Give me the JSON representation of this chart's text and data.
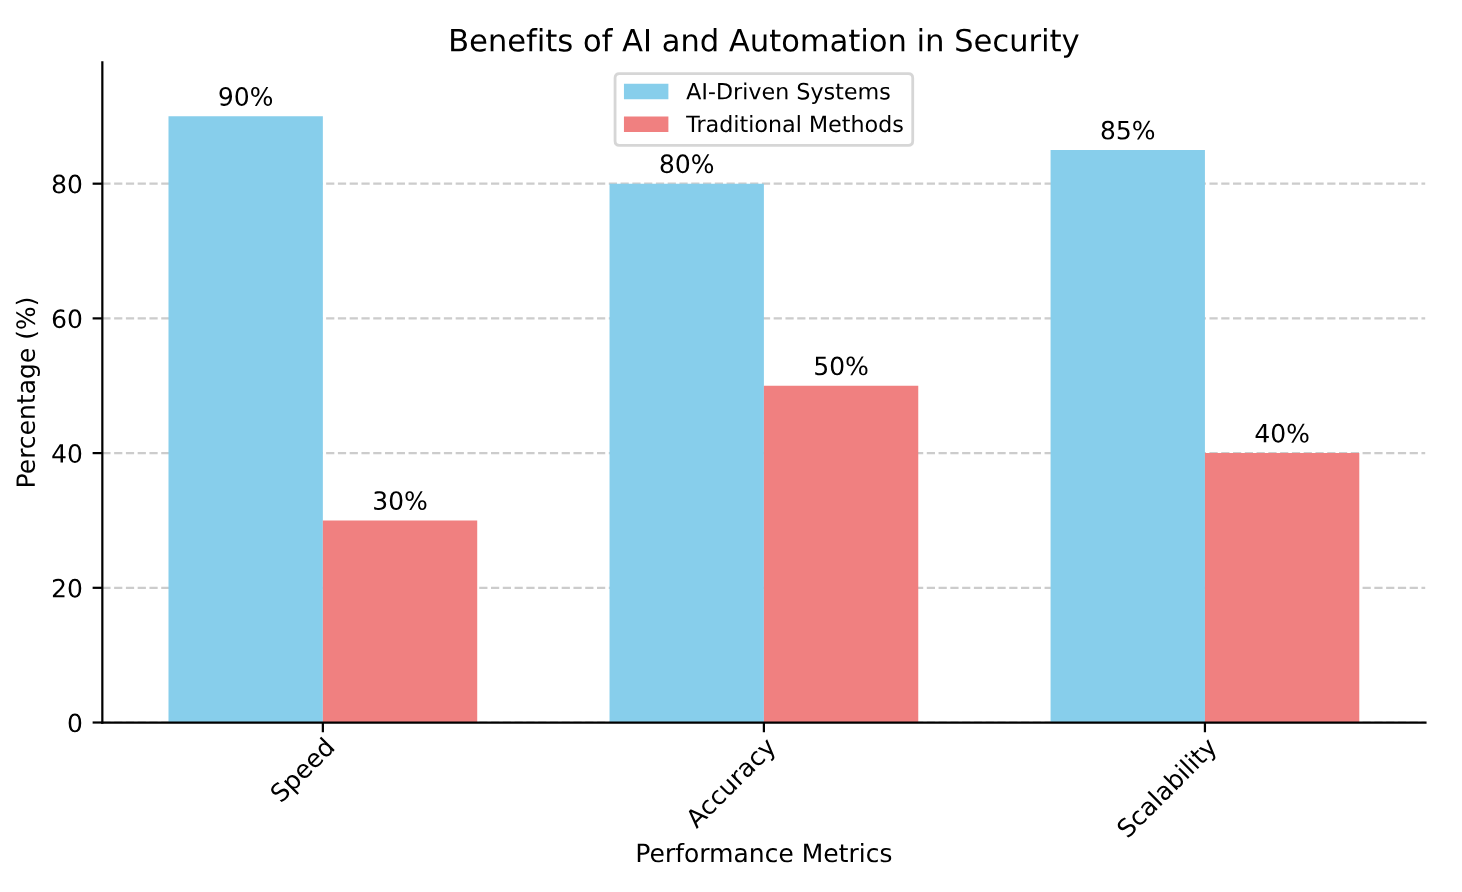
{
  "chart_data": {
    "type": "bar",
    "title": "Benefits of AI and Automation in Security",
    "xlabel": "Performance Metrics",
    "ylabel": "Percentage (%)",
    "categories": [
      "Speed",
      "Accuracy",
      "Scalability"
    ],
    "series": [
      {
        "name": "AI-Driven Systems",
        "color": "#87ceeb",
        "values": [
          90,
          80,
          85
        ],
        "value_labels": [
          "90%",
          "80%",
          "85%"
        ]
      },
      {
        "name": "Traditional Methods",
        "color": "#f08080",
        "values": [
          30,
          50,
          40
        ],
        "value_labels": [
          "30%",
          "50%",
          "40%"
        ]
      }
    ],
    "ylim": [
      0,
      98
    ],
    "yticks": [
      0,
      20,
      40,
      60,
      80
    ],
    "grid": "y",
    "legend": "top"
  }
}
